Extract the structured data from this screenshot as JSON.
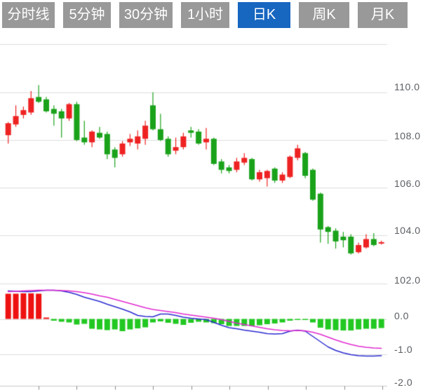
{
  "toolbar": {
    "tabs": [
      {
        "label": "分时线",
        "active": false
      },
      {
        "label": "5分钟",
        "active": false
      },
      {
        "label": "30分钟",
        "active": false
      },
      {
        "label": "1小时",
        "active": false
      },
      {
        "label": "日K",
        "active": true
      },
      {
        "label": "周K",
        "active": false
      },
      {
        "label": "月K",
        "active": false
      }
    ]
  },
  "axes": {
    "price_labels": [
      "110.0",
      "108.0",
      "106.0",
      "104.0",
      "102.0"
    ],
    "macd_labels": [
      "0.0",
      "-1.0",
      "-2.0"
    ]
  },
  "colors": {
    "up": "#ee2222",
    "down": "#1aa21a",
    "hist_up": "#ee1111",
    "hist_down": "#22c822",
    "dif_line": "#2b2bd0",
    "dea_line": "#e02ad0",
    "grid": "#dcdcdc",
    "axis_line": "#c8c8c8",
    "tick": "#8a8a8a",
    "axis_text": "#5a5e63",
    "tab_bg": "#999999",
    "tab_active_bg": "#1766c0"
  },
  "chart_data": {
    "type": "candlestick",
    "title": "",
    "panels": [
      "price-candles",
      "macd"
    ],
    "grid": "horizontal-only",
    "legend_position": "none",
    "y_axis_main": {
      "ticks": [
        110.0,
        108.0,
        106.0,
        104.0,
        102.0
      ],
      "range": [
        101.8,
        111.0
      ]
    },
    "y_axis_macd": {
      "ticks": [
        0.0,
        -1.0,
        -2.0
      ],
      "range": [
        -2.1,
        0.95
      ]
    },
    "series": [
      {
        "name": "daily-k-ohlc",
        "type": "candlestick",
        "ohlc": [
          [
            108.2,
            108.75,
            107.85,
            108.7
          ],
          [
            108.65,
            109.45,
            108.55,
            109.0
          ],
          [
            109.05,
            109.4,
            108.9,
            109.25
          ],
          [
            109.15,
            110.05,
            109.05,
            109.75
          ],
          [
            109.8,
            110.3,
            109.55,
            109.6
          ],
          [
            109.7,
            109.8,
            109.15,
            109.2
          ],
          [
            109.3,
            109.45,
            108.6,
            109.1
          ],
          [
            109.2,
            109.3,
            108.1,
            108.9
          ],
          [
            108.9,
            109.55,
            108.8,
            109.5
          ],
          [
            109.5,
            109.6,
            107.95,
            108.0
          ],
          [
            108.1,
            108.8,
            107.8,
            107.9
          ],
          [
            107.9,
            108.4,
            107.7,
            108.35
          ],
          [
            108.3,
            108.55,
            108.05,
            108.1
          ],
          [
            108.25,
            108.35,
            107.2,
            107.4
          ],
          [
            107.6,
            107.7,
            106.85,
            107.25
          ],
          [
            107.4,
            107.95,
            107.3,
            107.85
          ],
          [
            107.9,
            108.25,
            107.75,
            108.05
          ],
          [
            107.85,
            108.4,
            107.6,
            108.15
          ],
          [
            108.05,
            108.8,
            107.8,
            108.6
          ],
          [
            109.45,
            110.0,
            108.4,
            108.45
          ],
          [
            108.45,
            109.1,
            107.95,
            108.0
          ],
          [
            108.05,
            108.15,
            107.3,
            107.4
          ],
          [
            107.55,
            108.1,
            107.4,
            107.7
          ],
          [
            107.7,
            108.3,
            107.6,
            108.15
          ],
          [
            108.4,
            108.55,
            108.1,
            108.3
          ],
          [
            108.35,
            108.45,
            107.8,
            107.85
          ],
          [
            107.9,
            108.5,
            107.6,
            108.05
          ],
          [
            108.05,
            108.1,
            106.95,
            107.0
          ],
          [
            107.1,
            107.2,
            106.6,
            106.75
          ],
          [
            106.85,
            106.95,
            106.6,
            106.7
          ],
          [
            106.75,
            107.25,
            106.65,
            107.1
          ],
          [
            107.05,
            107.45,
            106.95,
            107.25
          ],
          [
            107.2,
            107.25,
            106.3,
            106.35
          ],
          [
            106.35,
            106.75,
            106.25,
            106.65
          ],
          [
            106.4,
            106.75,
            106.05,
            106.7
          ],
          [
            106.8,
            106.85,
            106.2,
            106.3
          ],
          [
            106.3,
            106.65,
            106.2,
            106.55
          ],
          [
            106.45,
            107.35,
            106.4,
            107.3
          ],
          [
            107.25,
            107.8,
            107.15,
            107.65
          ],
          [
            107.45,
            107.5,
            106.4,
            106.5
          ],
          [
            106.75,
            106.8,
            105.45,
            105.5
          ],
          [
            105.75,
            105.8,
            103.7,
            104.25
          ],
          [
            104.35,
            104.4,
            103.65,
            104.15
          ],
          [
            104.2,
            104.3,
            103.45,
            103.75
          ],
          [
            103.95,
            104.15,
            103.5,
            103.8
          ],
          [
            103.95,
            104.05,
            103.2,
            103.25
          ],
          [
            103.3,
            103.7,
            103.25,
            103.6
          ],
          [
            103.5,
            104.05,
            103.45,
            103.85
          ],
          [
            103.85,
            104.1,
            103.55,
            103.6
          ],
          [
            103.7,
            103.78,
            103.62,
            103.72
          ]
        ]
      },
      {
        "name": "macd-histogram",
        "type": "bar",
        "values": [
          0.72,
          0.72,
          0.73,
          0.73,
          0.72,
          0.04,
          -0.05,
          -0.08,
          -0.1,
          -0.16,
          -0.14,
          -0.28,
          -0.3,
          -0.32,
          -0.3,
          -0.35,
          -0.3,
          -0.27,
          -0.24,
          -0.1,
          -0.07,
          -0.11,
          -0.14,
          -0.17,
          -0.11,
          -0.08,
          -0.1,
          -0.12,
          -0.15,
          -0.2,
          -0.2,
          -0.2,
          -0.2,
          -0.18,
          -0.15,
          -0.13,
          -0.1,
          -0.05,
          -0.02,
          -0.03,
          -0.1,
          -0.25,
          -0.3,
          -0.32,
          -0.33,
          -0.33,
          -0.3,
          -0.28,
          -0.28,
          -0.26
        ]
      },
      {
        "name": "dif",
        "type": "line",
        "values": [
          0.8,
          0.79,
          0.78,
          0.78,
          0.8,
          0.82,
          0.82,
          0.8,
          0.76,
          0.7,
          0.62,
          0.56,
          0.5,
          0.42,
          0.35,
          0.28,
          0.2,
          0.1,
          0.07,
          0.06,
          0.14,
          0.14,
          0.1,
          0.05,
          0.02,
          0.0,
          -0.02,
          -0.1,
          -0.18,
          -0.25,
          -0.28,
          -0.32,
          -0.35,
          -0.38,
          -0.42,
          -0.43,
          -0.42,
          -0.35,
          -0.32,
          -0.35,
          -0.5,
          -0.65,
          -0.8,
          -0.9,
          -0.97,
          -1.02,
          -1.05,
          -1.06,
          -1.06,
          -1.05
        ]
      },
      {
        "name": "dea",
        "type": "line",
        "values": [
          0.78,
          0.79,
          0.8,
          0.81,
          0.82,
          0.82,
          0.82,
          0.81,
          0.8,
          0.78,
          0.75,
          0.71,
          0.66,
          0.62,
          0.56,
          0.5,
          0.44,
          0.38,
          0.32,
          0.27,
          0.24,
          0.21,
          0.18,
          0.14,
          0.11,
          0.08,
          0.05,
          0.02,
          -0.02,
          -0.07,
          -0.12,
          -0.16,
          -0.2,
          -0.24,
          -0.28,
          -0.31,
          -0.33,
          -0.34,
          -0.33,
          -0.34,
          -0.38,
          -0.44,
          -0.52,
          -0.6,
          -0.67,
          -0.73,
          -0.78,
          -0.81,
          -0.83,
          -0.84
        ]
      }
    ]
  }
}
